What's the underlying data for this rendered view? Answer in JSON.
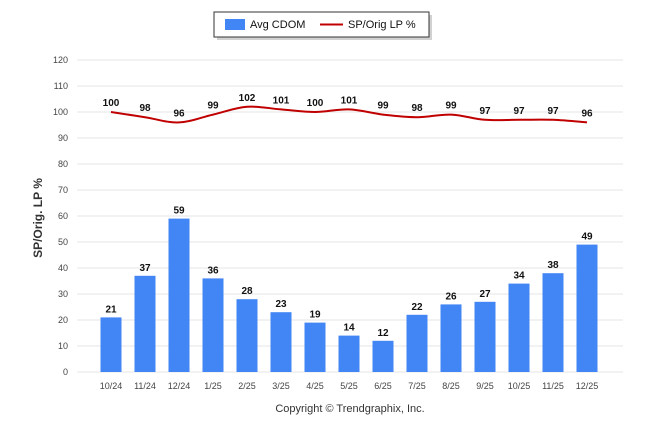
{
  "chart_data": {
    "type": "bar",
    "categories": [
      "10/24",
      "11/24",
      "12/24",
      "1/25",
      "2/25",
      "3/25",
      "4/25",
      "5/25",
      "6/25",
      "7/25",
      "8/25",
      "9/25",
      "10/25",
      "11/25",
      "12/25"
    ],
    "series": [
      {
        "name": "Avg CDOM",
        "kind": "bar",
        "values": [
          21,
          37,
          59,
          36,
          28,
          23,
          19,
          14,
          12,
          22,
          26,
          27,
          34,
          38,
          49
        ]
      },
      {
        "name": "SP/Orig LP %",
        "kind": "line",
        "values": [
          100,
          98,
          96,
          99,
          102,
          101,
          100,
          101,
          99,
          98,
          99,
          97,
          97,
          97,
          96
        ]
      }
    ],
    "ylabel": "SP/Orig. LP %",
    "ylim": [
      0,
      120
    ],
    "yticks": [
      0,
      10,
      20,
      30,
      40,
      50,
      60,
      70,
      80,
      90,
      100,
      110,
      120
    ],
    "grid": true,
    "legend_position": "top-center",
    "colors": {
      "bar": "#4285f4",
      "line": "#c00000",
      "grid": "#e6e6e6"
    }
  },
  "footer": {
    "copyright": "Copyright © Trendgraphix, Inc."
  }
}
